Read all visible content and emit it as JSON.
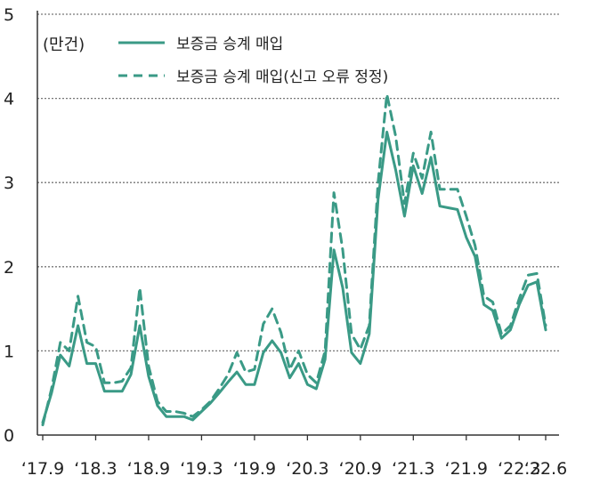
{
  "chart_data": {
    "type": "line",
    "unit_label": "(만건)",
    "ylim": [
      0,
      5
    ],
    "yticks": [
      "0",
      "1",
      "2",
      "3",
      "4",
      "5"
    ],
    "xtick_labels": [
      "‘17.9",
      "‘18.3",
      "‘18.9",
      "‘19.3",
      "‘19.9",
      "‘20.3",
      "‘20.9",
      "‘21.3",
      "‘21.9",
      "‘22.3",
      "‘22.6"
    ],
    "x": [
      "2017-09",
      "2017-10",
      "2017-11",
      "2017-12",
      "2018-01",
      "2018-02",
      "2018-03",
      "2018-04",
      "2018-05",
      "2018-06",
      "2018-07",
      "2018-08",
      "2018-09",
      "2018-10",
      "2018-11",
      "2018-12",
      "2019-01",
      "2019-02",
      "2019-03",
      "2019-04",
      "2019-05",
      "2019-06",
      "2019-07",
      "2019-08",
      "2019-09",
      "2019-10",
      "2019-11",
      "2019-12",
      "2020-01",
      "2020-02",
      "2020-03",
      "2020-04",
      "2020-05",
      "2020-06",
      "2020-07",
      "2020-08",
      "2020-09",
      "2020-10",
      "2020-11",
      "2020-12",
      "2021-01",
      "2021-02",
      "2021-03",
      "2021-04",
      "2021-05",
      "2021-06",
      "2021-07",
      "2021-08",
      "2021-09",
      "2021-10",
      "2021-11",
      "2021-12",
      "2022-01",
      "2022-02",
      "2022-03",
      "2022-04",
      "2022-05",
      "2022-06"
    ],
    "legend_position": "top-left",
    "grid": true,
    "series": [
      {
        "name": "보증금 승계 매입",
        "style": "solid",
        "color": "#3a9a86",
        "values": [
          0.15,
          0.5,
          0.95,
          0.82,
          1.3,
          0.85,
          0.85,
          0.52,
          0.52,
          0.52,
          0.72,
          1.3,
          0.7,
          0.35,
          0.22,
          0.22,
          0.22,
          0.18,
          0.28,
          0.38,
          0.5,
          0.63,
          0.75,
          0.6,
          0.6,
          0.98,
          1.12,
          0.98,
          0.68,
          0.85,
          0.6,
          0.55,
          0.9,
          2.2,
          1.75,
          0.98,
          0.85,
          1.2,
          2.8,
          3.6,
          3.15,
          2.6,
          3.2,
          2.87,
          3.3,
          2.72,
          2.7,
          2.68,
          2.35,
          2.12,
          1.55,
          1.48,
          1.15,
          1.25,
          1.55,
          1.78,
          1.82,
          1.25
        ]
      },
      {
        "name": "보증금 승계 매입(신고 오류 정정)",
        "style": "dashed",
        "color": "#3a9a86",
        "values": [
          0.12,
          0.55,
          1.1,
          1.0,
          1.65,
          1.1,
          1.05,
          0.62,
          0.62,
          0.64,
          0.8,
          1.75,
          0.82,
          0.4,
          0.28,
          0.28,
          0.26,
          0.22,
          0.3,
          0.4,
          0.55,
          0.72,
          0.98,
          0.75,
          0.78,
          1.32,
          1.5,
          1.22,
          0.78,
          1.0,
          0.72,
          0.62,
          1.0,
          2.88,
          2.2,
          1.2,
          1.02,
          1.3,
          3.0,
          4.05,
          3.55,
          2.75,
          3.35,
          3.05,
          3.6,
          2.92,
          2.92,
          2.92,
          2.6,
          2.25,
          1.65,
          1.58,
          1.2,
          1.3,
          1.62,
          1.9,
          1.92,
          1.3
        ]
      }
    ]
  }
}
